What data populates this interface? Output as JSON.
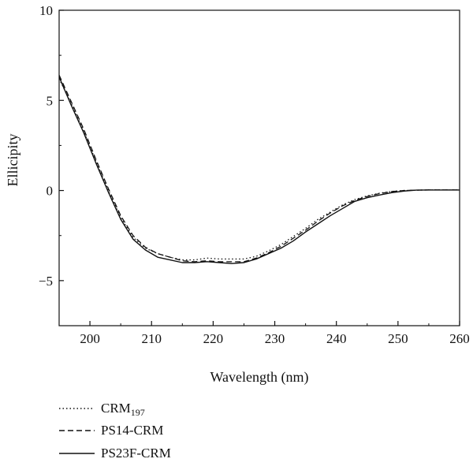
{
  "chart_data": {
    "type": "line",
    "title": "",
    "xlabel": "Wavelength (nm)",
    "ylabel": "Ellicipity",
    "xlim": [
      195,
      260
    ],
    "ylim": [
      -7.5,
      10
    ],
    "xticks": [
      200,
      210,
      220,
      230,
      240,
      250,
      260
    ],
    "yticks": [
      10,
      5,
      0,
      -5
    ],
    "ytick_labels": [
      "10",
      "5",
      "0",
      "−5"
    ],
    "grid": false,
    "legend_position": "bottom-left",
    "series": [
      {
        "name": "CRM",
        "name_subscript": "197",
        "style": "dotted",
        "color": "#111111",
        "x": [
          195,
          197,
          199,
          201,
          203,
          205,
          207,
          209,
          211,
          213,
          215,
          217,
          219,
          221,
          223,
          225,
          227,
          229,
          231,
          233,
          235,
          237,
          239,
          241,
          243,
          245,
          247,
          249,
          251,
          253,
          255,
          257,
          260
        ],
        "y": [
          6.2,
          4.8,
          3.3,
          1.6,
          0.0,
          -1.5,
          -2.6,
          -3.2,
          -3.5,
          -3.7,
          -3.85,
          -3.85,
          -3.75,
          -3.8,
          -3.8,
          -3.8,
          -3.65,
          -3.35,
          -3.0,
          -2.55,
          -2.1,
          -1.6,
          -1.2,
          -0.8,
          -0.5,
          -0.3,
          -0.15,
          -0.05,
          0.0,
          0.02,
          0.03,
          0.03,
          0.03
        ]
      },
      {
        "name": "PS14-CRM",
        "style": "dashed",
        "color": "#111111",
        "x": [
          195,
          197,
          199,
          201,
          203,
          205,
          207,
          209,
          211,
          213,
          215,
          217,
          219,
          221,
          223,
          225,
          227,
          229,
          231,
          233,
          235,
          237,
          239,
          241,
          243,
          245,
          247,
          249,
          251,
          253,
          255,
          257,
          260
        ],
        "y": [
          6.4,
          4.9,
          3.4,
          1.7,
          0.1,
          -1.4,
          -2.5,
          -3.15,
          -3.5,
          -3.7,
          -3.9,
          -3.95,
          -3.9,
          -3.95,
          -3.95,
          -3.95,
          -3.75,
          -3.45,
          -3.1,
          -2.65,
          -2.2,
          -1.7,
          -1.25,
          -0.85,
          -0.55,
          -0.33,
          -0.17,
          -0.06,
          0.0,
          0.02,
          0.03,
          0.03,
          0.03
        ]
      },
      {
        "name": "PS23F-CRM",
        "style": "solid",
        "color": "#111111",
        "x": [
          195,
          197,
          199,
          201,
          203,
          205,
          207,
          209,
          211,
          213,
          215,
          217,
          219,
          221,
          223,
          225,
          227,
          229,
          231,
          233,
          235,
          237,
          239,
          241,
          243,
          245,
          247,
          249,
          251,
          253,
          255,
          257,
          260
        ],
        "y": [
          6.3,
          4.7,
          3.2,
          1.5,
          -0.1,
          -1.6,
          -2.7,
          -3.3,
          -3.7,
          -3.85,
          -4.0,
          -4.0,
          -3.95,
          -4.0,
          -4.05,
          -4.0,
          -3.8,
          -3.5,
          -3.2,
          -2.8,
          -2.3,
          -1.85,
          -1.4,
          -1.0,
          -0.6,
          -0.4,
          -0.25,
          -0.12,
          -0.03,
          0.02,
          0.03,
          0.03,
          0.03
        ]
      }
    ]
  }
}
